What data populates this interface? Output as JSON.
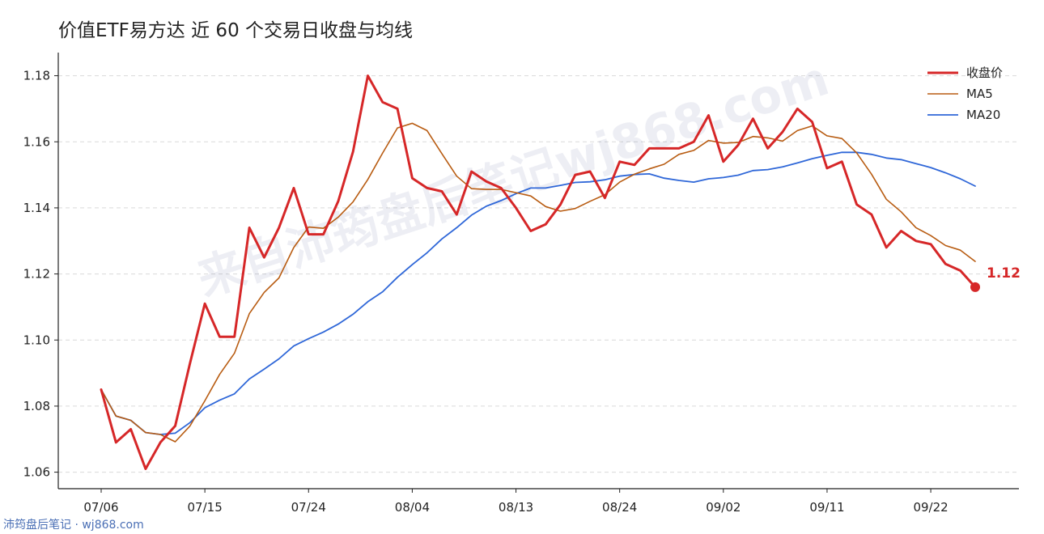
{
  "chart_data": {
    "type": "line",
    "title": "价值ETF易方达 近 60 个交易日收盘与均线",
    "xlabel": "",
    "ylabel": "",
    "ylim": [
      1.055,
      1.187
    ],
    "yticks": [
      "1.06",
      "1.08",
      "1.10",
      "1.12",
      "1.14",
      "1.16",
      "1.18"
    ],
    "xtick_labels": [
      "07/06",
      "07/15",
      "07/24",
      "08/04",
      "08/13",
      "08/24",
      "09/02",
      "09/11",
      "09/22"
    ],
    "xtick_positions": [
      0,
      7,
      14,
      21,
      28,
      35,
      42,
      49,
      56
    ],
    "grid": "horizontal-dashed",
    "legend": "top-right",
    "series": [
      {
        "name": "收盘价",
        "color": "#d62728",
        "values": [
          1.085,
          1.069,
          1.073,
          1.061,
          1.069,
          1.074,
          1.093,
          1.111,
          1.101,
          1.101,
          1.134,
          1.125,
          1.134,
          1.146,
          1.132,
          1.132,
          1.142,
          1.157,
          1.18,
          1.172,
          1.17,
          1.149,
          1.146,
          1.145,
          1.138,
          1.151,
          1.148,
          1.146,
          1.14,
          1.133,
          1.135,
          1.141,
          1.15,
          1.151,
          1.143,
          1.154,
          1.153,
          1.158,
          1.158,
          1.158,
          1.16,
          1.168,
          1.154,
          1.159,
          1.167,
          1.158,
          1.163,
          1.17,
          1.166,
          1.152,
          1.154,
          1.141,
          1.138,
          1.128,
          1.133,
          1.13,
          1.129,
          1.123,
          1.121,
          1.116
        ]
      },
      {
        "name": "MA5",
        "color": "#b85c12",
        "values": [
          1.085,
          1.077,
          1.0757,
          1.072,
          1.0714,
          1.0692,
          1.074,
          1.0816,
          1.0896,
          1.096,
          1.108,
          1.1144,
          1.1188,
          1.128,
          1.1342,
          1.1338,
          1.1372,
          1.1418,
          1.1486,
          1.1566,
          1.1642,
          1.1656,
          1.1634,
          1.1564,
          1.1496,
          1.1458,
          1.1456,
          1.1456,
          1.1446,
          1.1436,
          1.1404,
          1.139,
          1.1398,
          1.142,
          1.144,
          1.1478,
          1.1502,
          1.1518,
          1.1532,
          1.1562,
          1.1574,
          1.1604,
          1.1596,
          1.1598,
          1.1616,
          1.1612,
          1.1602,
          1.1634,
          1.1648,
          1.1618,
          1.161,
          1.1566,
          1.1502,
          1.1426,
          1.1388,
          1.134,
          1.1316,
          1.1286,
          1.1272,
          1.1238
        ]
      },
      {
        "name": "MA20",
        "color": "#2f67d8",
        "values": [
          1.085,
          1.077,
          1.0757,
          1.072,
          1.0714,
          1.0718,
          1.075,
          1.0795,
          1.0818,
          1.0837,
          1.0882,
          1.0912,
          1.0943,
          1.0982,
          1.1004,
          1.1024,
          1.1048,
          1.1078,
          1.1116,
          1.1146,
          1.119,
          1.1228,
          1.1264,
          1.1306,
          1.134,
          1.1378,
          1.1405,
          1.1422,
          1.1443,
          1.146,
          1.146,
          1.1468,
          1.1477,
          1.1479,
          1.1485,
          1.1496,
          1.1501,
          1.1503,
          1.149,
          1.1483,
          1.1478,
          1.1488,
          1.1492,
          1.1499,
          1.1513,
          1.1516,
          1.1524,
          1.1536,
          1.1549,
          1.1559,
          1.1568,
          1.1568,
          1.1562,
          1.1551,
          1.1546,
          1.1534,
          1.1522,
          1.1506,
          1.1488,
          1.1466
        ]
      }
    ],
    "end_label": "1.12"
  },
  "watermark": "来自沛筠盘后笔记wj868.com",
  "footer": "沛筠盘后笔记 · wj868.com"
}
